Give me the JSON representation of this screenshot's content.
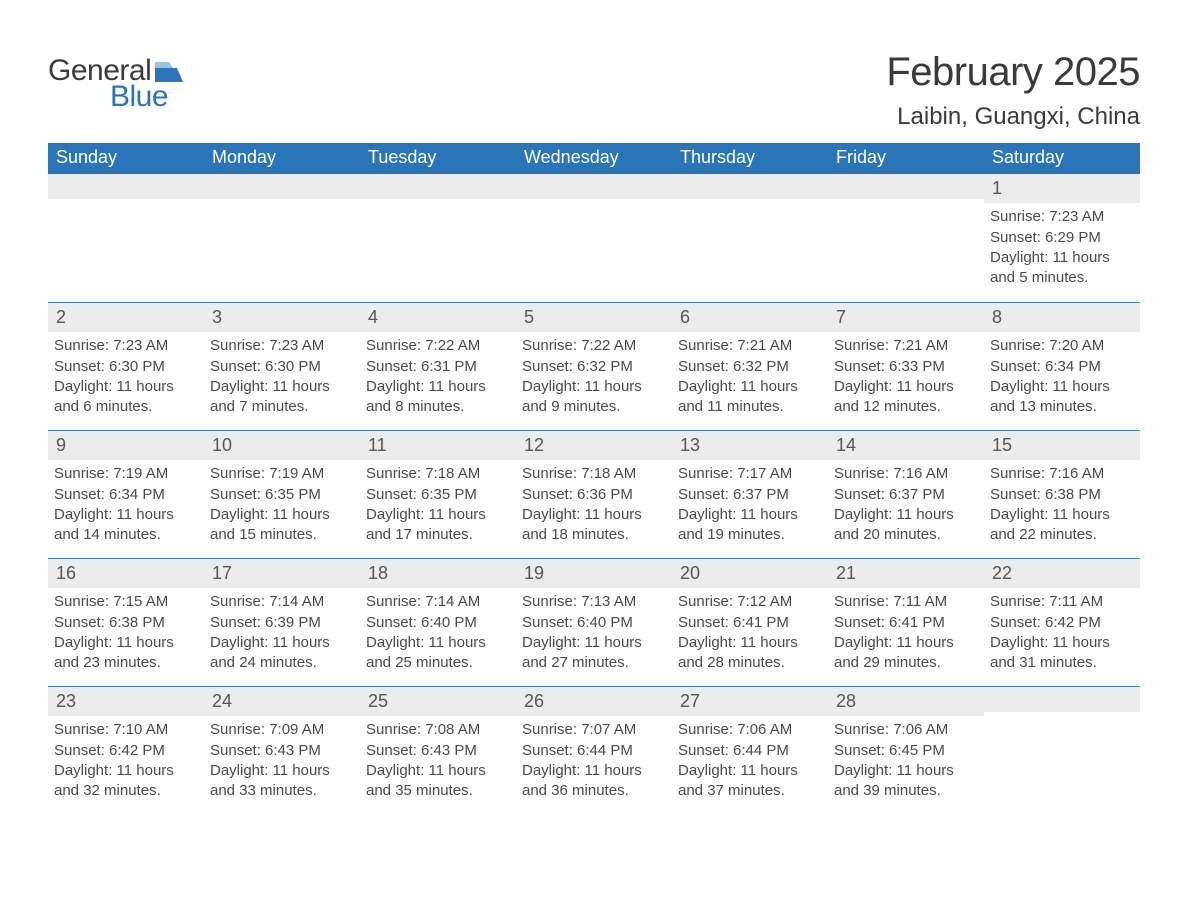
{
  "logo": {
    "word1": "General",
    "word2": "Blue",
    "text_color": "#3a3a3a",
    "accent_color": "#2a74b8"
  },
  "header": {
    "title": "February 2025",
    "location": "Laibin, Guangxi, China",
    "title_fontsize": 40,
    "location_fontsize": 24,
    "text_color": "#3a3a3a"
  },
  "calendar": {
    "header_bg": "#2a74b8",
    "header_text_color": "#ffffff",
    "row_divider_color": "#3b7fbf",
    "daynum_bg": "#ececec",
    "body_text_color": "#4a4a4a",
    "weekday_fontsize": 18,
    "daynum_fontsize": 18,
    "info_fontsize": 15,
    "weekdays": [
      "Sunday",
      "Monday",
      "Tuesday",
      "Wednesday",
      "Thursday",
      "Friday",
      "Saturday"
    ],
    "weeks": [
      [
        null,
        null,
        null,
        null,
        null,
        null,
        {
          "day": "1",
          "sunrise": "Sunrise: 7:23 AM",
          "sunset": "Sunset: 6:29 PM",
          "daylight1": "Daylight: 11 hours",
          "daylight2": "and 5 minutes."
        }
      ],
      [
        {
          "day": "2",
          "sunrise": "Sunrise: 7:23 AM",
          "sunset": "Sunset: 6:30 PM",
          "daylight1": "Daylight: 11 hours",
          "daylight2": "and 6 minutes."
        },
        {
          "day": "3",
          "sunrise": "Sunrise: 7:23 AM",
          "sunset": "Sunset: 6:30 PM",
          "daylight1": "Daylight: 11 hours",
          "daylight2": "and 7 minutes."
        },
        {
          "day": "4",
          "sunrise": "Sunrise: 7:22 AM",
          "sunset": "Sunset: 6:31 PM",
          "daylight1": "Daylight: 11 hours",
          "daylight2": "and 8 minutes."
        },
        {
          "day": "5",
          "sunrise": "Sunrise: 7:22 AM",
          "sunset": "Sunset: 6:32 PM",
          "daylight1": "Daylight: 11 hours",
          "daylight2": "and 9 minutes."
        },
        {
          "day": "6",
          "sunrise": "Sunrise: 7:21 AM",
          "sunset": "Sunset: 6:32 PM",
          "daylight1": "Daylight: 11 hours",
          "daylight2": "and 11 minutes."
        },
        {
          "day": "7",
          "sunrise": "Sunrise: 7:21 AM",
          "sunset": "Sunset: 6:33 PM",
          "daylight1": "Daylight: 11 hours",
          "daylight2": "and 12 minutes."
        },
        {
          "day": "8",
          "sunrise": "Sunrise: 7:20 AM",
          "sunset": "Sunset: 6:34 PM",
          "daylight1": "Daylight: 11 hours",
          "daylight2": "and 13 minutes."
        }
      ],
      [
        {
          "day": "9",
          "sunrise": "Sunrise: 7:19 AM",
          "sunset": "Sunset: 6:34 PM",
          "daylight1": "Daylight: 11 hours",
          "daylight2": "and 14 minutes."
        },
        {
          "day": "10",
          "sunrise": "Sunrise: 7:19 AM",
          "sunset": "Sunset: 6:35 PM",
          "daylight1": "Daylight: 11 hours",
          "daylight2": "and 15 minutes."
        },
        {
          "day": "11",
          "sunrise": "Sunrise: 7:18 AM",
          "sunset": "Sunset: 6:35 PM",
          "daylight1": "Daylight: 11 hours",
          "daylight2": "and 17 minutes."
        },
        {
          "day": "12",
          "sunrise": "Sunrise: 7:18 AM",
          "sunset": "Sunset: 6:36 PM",
          "daylight1": "Daylight: 11 hours",
          "daylight2": "and 18 minutes."
        },
        {
          "day": "13",
          "sunrise": "Sunrise: 7:17 AM",
          "sunset": "Sunset: 6:37 PM",
          "daylight1": "Daylight: 11 hours",
          "daylight2": "and 19 minutes."
        },
        {
          "day": "14",
          "sunrise": "Sunrise: 7:16 AM",
          "sunset": "Sunset: 6:37 PM",
          "daylight1": "Daylight: 11 hours",
          "daylight2": "and 20 minutes."
        },
        {
          "day": "15",
          "sunrise": "Sunrise: 7:16 AM",
          "sunset": "Sunset: 6:38 PM",
          "daylight1": "Daylight: 11 hours",
          "daylight2": "and 22 minutes."
        }
      ],
      [
        {
          "day": "16",
          "sunrise": "Sunrise: 7:15 AM",
          "sunset": "Sunset: 6:38 PM",
          "daylight1": "Daylight: 11 hours",
          "daylight2": "and 23 minutes."
        },
        {
          "day": "17",
          "sunrise": "Sunrise: 7:14 AM",
          "sunset": "Sunset: 6:39 PM",
          "daylight1": "Daylight: 11 hours",
          "daylight2": "and 24 minutes."
        },
        {
          "day": "18",
          "sunrise": "Sunrise: 7:14 AM",
          "sunset": "Sunset: 6:40 PM",
          "daylight1": "Daylight: 11 hours",
          "daylight2": "and 25 minutes."
        },
        {
          "day": "19",
          "sunrise": "Sunrise: 7:13 AM",
          "sunset": "Sunset: 6:40 PM",
          "daylight1": "Daylight: 11 hours",
          "daylight2": "and 27 minutes."
        },
        {
          "day": "20",
          "sunrise": "Sunrise: 7:12 AM",
          "sunset": "Sunset: 6:41 PM",
          "daylight1": "Daylight: 11 hours",
          "daylight2": "and 28 minutes."
        },
        {
          "day": "21",
          "sunrise": "Sunrise: 7:11 AM",
          "sunset": "Sunset: 6:41 PM",
          "daylight1": "Daylight: 11 hours",
          "daylight2": "and 29 minutes."
        },
        {
          "day": "22",
          "sunrise": "Sunrise: 7:11 AM",
          "sunset": "Sunset: 6:42 PM",
          "daylight1": "Daylight: 11 hours",
          "daylight2": "and 31 minutes."
        }
      ],
      [
        {
          "day": "23",
          "sunrise": "Sunrise: 7:10 AM",
          "sunset": "Sunset: 6:42 PM",
          "daylight1": "Daylight: 11 hours",
          "daylight2": "and 32 minutes."
        },
        {
          "day": "24",
          "sunrise": "Sunrise: 7:09 AM",
          "sunset": "Sunset: 6:43 PM",
          "daylight1": "Daylight: 11 hours",
          "daylight2": "and 33 minutes."
        },
        {
          "day": "25",
          "sunrise": "Sunrise: 7:08 AM",
          "sunset": "Sunset: 6:43 PM",
          "daylight1": "Daylight: 11 hours",
          "daylight2": "and 35 minutes."
        },
        {
          "day": "26",
          "sunrise": "Sunrise: 7:07 AM",
          "sunset": "Sunset: 6:44 PM",
          "daylight1": "Daylight: 11 hours",
          "daylight2": "and 36 minutes."
        },
        {
          "day": "27",
          "sunrise": "Sunrise: 7:06 AM",
          "sunset": "Sunset: 6:44 PM",
          "daylight1": "Daylight: 11 hours",
          "daylight2": "and 37 minutes."
        },
        {
          "day": "28",
          "sunrise": "Sunrise: 7:06 AM",
          "sunset": "Sunset: 6:45 PM",
          "daylight1": "Daylight: 11 hours",
          "daylight2": "and 39 minutes."
        },
        null
      ]
    ]
  }
}
